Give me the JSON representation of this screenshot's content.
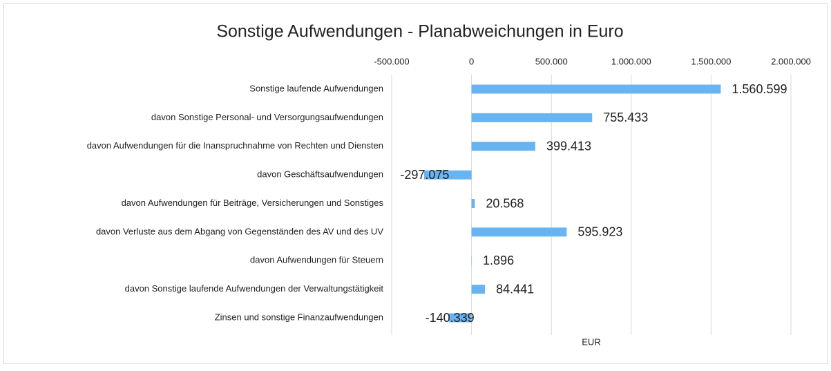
{
  "chart_data": {
    "type": "barh",
    "title": "Sonstige Aufwendungen - Planabweichungen in Euro",
    "xlabel": "EUR",
    "categories": [
      "Sonstige laufende Aufwendungen",
      "davon Sonstige Personal- und Versorgungsaufwendungen",
      "davon Aufwendungen für die Inanspruchnahme von Rechten und Diensten",
      "davon Geschäftsaufwendungen",
      "davon Aufwendungen für Beiträge, Versicherungen und Sonstiges",
      "davon Verluste aus dem Abgang von Gegenständen des AV und des UV",
      "davon Aufwendungen für Steuern",
      "davon Sonstige laufende Aufwendungen der Verwaltungstätigkeit",
      "Zinsen und sonstige Finanzaufwendungen"
    ],
    "values": [
      1560599,
      755433,
      399413,
      -297075,
      20568,
      595923,
      1896,
      84441,
      -140339
    ],
    "value_labels": [
      "1.560.599",
      "755.433",
      "399.413",
      "-297.075",
      "20.568",
      "595.923",
      "1.896",
      "84.441",
      "-140.339"
    ],
    "color": "#68b3f1",
    "xlim": [
      -500000,
      2000000
    ],
    "xticks": [
      {
        "value": -500000,
        "label": "-500.000"
      },
      0,
      {
        "value": 500000,
        "label": "500.000"
      },
      {
        "value": 1000000,
        "label": "1.000.000"
      },
      {
        "value": 1500000,
        "label": "1.500.000"
      },
      {
        "value": 2000000,
        "label": "2.000.000"
      }
    ],
    "grid": true
  }
}
